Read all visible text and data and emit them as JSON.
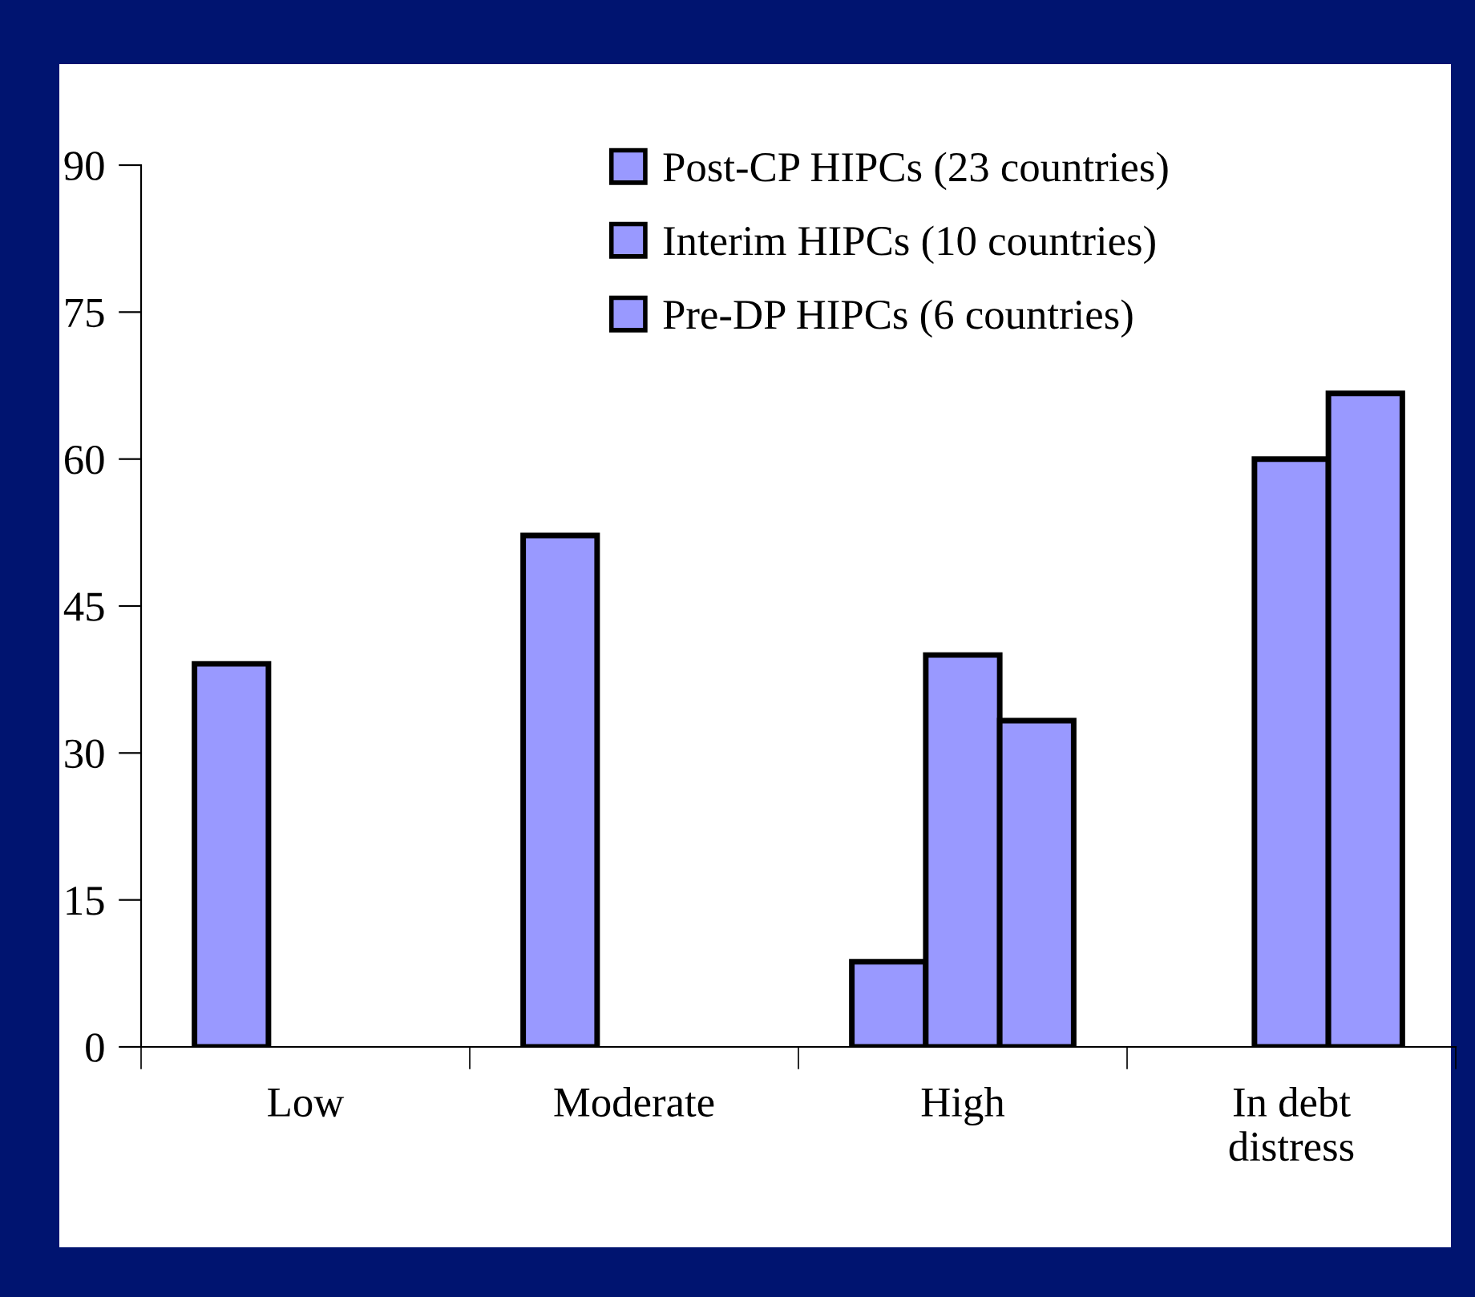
{
  "chart_data": {
    "type": "bar",
    "categories": [
      "Low",
      "Moderate",
      "High",
      "In debt\ndistress"
    ],
    "series": [
      {
        "name": "Post-CP HIPCs (23 countries)",
        "color": "#9999ff",
        "values": [
          39.1,
          52.2,
          8.7,
          null
        ]
      },
      {
        "name": "Interim HIPCs (10 countries)",
        "color": "#9999ff",
        "values": [
          null,
          null,
          40,
          60
        ]
      },
      {
        "name": "Pre-DP HIPCs (6 countries)",
        "color": "#9999ff",
        "values": [
          null,
          null,
          33.3,
          66.7
        ]
      }
    ],
    "ylim": [
      0,
      90
    ],
    "yticks": [
      0,
      15,
      30,
      45,
      60,
      75,
      90
    ],
    "grid": false,
    "legend": "top"
  }
}
